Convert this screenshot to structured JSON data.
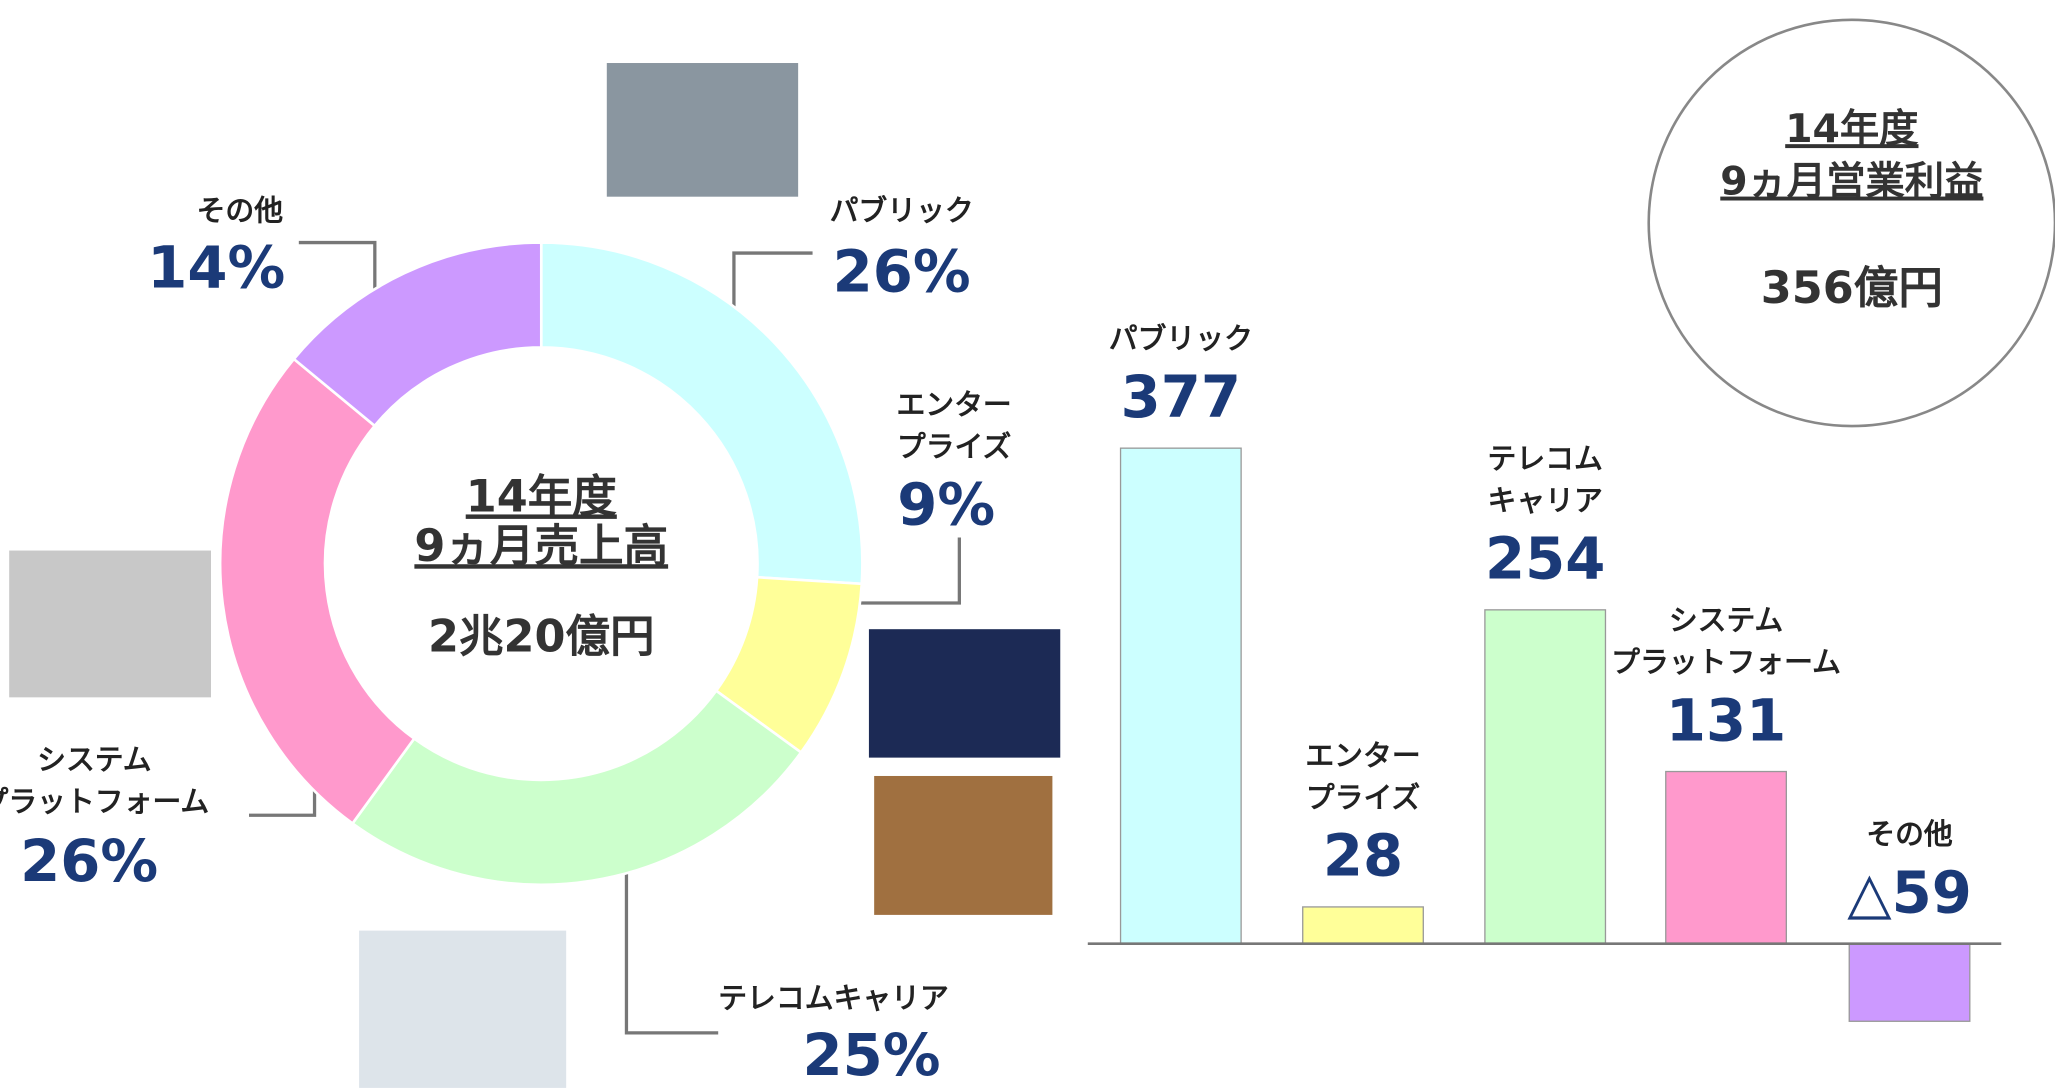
{
  "chart_data": [
    {
      "type": "donut",
      "title": "14年度\n9ヵ月売上高",
      "total": "2兆20億円",
      "categories": [
        "パブリック",
        "エンター\nプライズ",
        "テレコムキャリア",
        "システム\nプラットフォーム",
        "その他"
      ],
      "values": [
        26,
        9,
        25,
        26,
        14
      ],
      "value_labels": [
        "26%",
        "9%",
        "25%",
        "26%",
        "14%"
      ],
      "colors": [
        "#ccffff",
        "#ffff99",
        "#ccffcc",
        "#ff99cc",
        "#cc99ff"
      ]
    },
    {
      "type": "bar",
      "title": "14年度\n9ヵ月営業利益",
      "total": "356億円",
      "categories": [
        "パブリック",
        "エンター\nプライズ",
        "テレコム\nキャリア",
        "システム\nプラットフォーム",
        "その他"
      ],
      "values": [
        377,
        28,
        254,
        131,
        -59
      ],
      "value_labels": [
        "377",
        "28",
        "254",
        "131",
        "△59"
      ],
      "colors": [
        "#ccffff",
        "#ffff99",
        "#ccffcc",
        "#ff99cc",
        "#cc99ff"
      ]
    }
  ]
}
